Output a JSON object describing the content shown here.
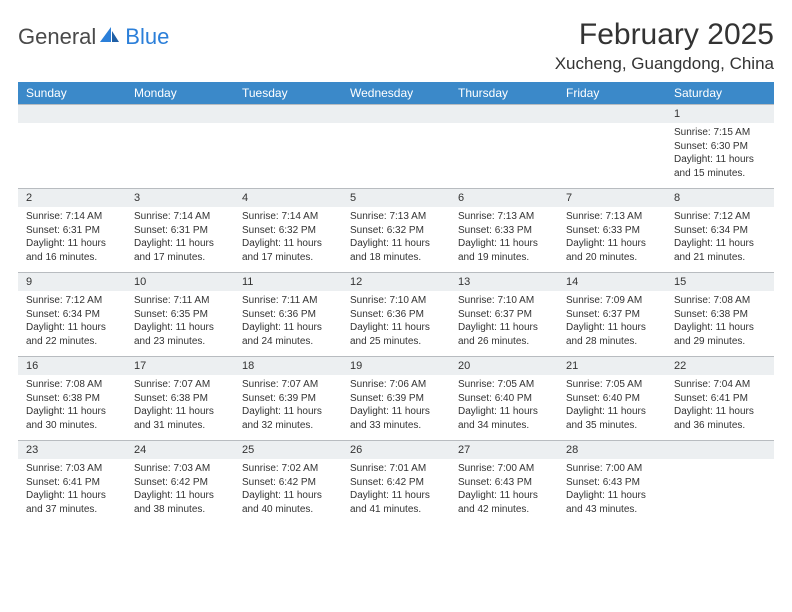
{
  "brand": {
    "part1": "General",
    "part2": "Blue"
  },
  "title": "February 2025",
  "location": "Xucheng, Guangdong, China",
  "styling": {
    "header_bg": "#3b89c9",
    "header_text": "#ffffff",
    "date_strip_bg": "#eceff1",
    "date_strip_border": "#b8bcc0",
    "body_text": "#333333",
    "logo_gray": "#4a4a4a",
    "logo_blue": "#2b7fd9",
    "month_fontsize": 30,
    "location_fontsize": 17,
    "dayhead_fontsize": 12,
    "date_fontsize": 11,
    "content_fontsize": 10
  },
  "day_names": [
    "Sunday",
    "Monday",
    "Tuesday",
    "Wednesday",
    "Thursday",
    "Friday",
    "Saturday"
  ],
  "weeks": [
    [
      {
        "date": "",
        "lines": [
          "",
          "",
          "",
          ""
        ]
      },
      {
        "date": "",
        "lines": [
          "",
          "",
          "",
          ""
        ]
      },
      {
        "date": "",
        "lines": [
          "",
          "",
          "",
          ""
        ]
      },
      {
        "date": "",
        "lines": [
          "",
          "",
          "",
          ""
        ]
      },
      {
        "date": "",
        "lines": [
          "",
          "",
          "",
          ""
        ]
      },
      {
        "date": "",
        "lines": [
          "",
          "",
          "",
          ""
        ]
      },
      {
        "date": "1",
        "lines": [
          "Sunrise: 7:15 AM",
          "Sunset: 6:30 PM",
          "Daylight: 11 hours and 15 minutes."
        ]
      }
    ],
    [
      {
        "date": "2",
        "lines": [
          "Sunrise: 7:14 AM",
          "Sunset: 6:31 PM",
          "Daylight: 11 hours and 16 minutes."
        ]
      },
      {
        "date": "3",
        "lines": [
          "Sunrise: 7:14 AM",
          "Sunset: 6:31 PM",
          "Daylight: 11 hours and 17 minutes."
        ]
      },
      {
        "date": "4",
        "lines": [
          "Sunrise: 7:14 AM",
          "Sunset: 6:32 PM",
          "Daylight: 11 hours and 17 minutes."
        ]
      },
      {
        "date": "5",
        "lines": [
          "Sunrise: 7:13 AM",
          "Sunset: 6:32 PM",
          "Daylight: 11 hours and 18 minutes."
        ]
      },
      {
        "date": "6",
        "lines": [
          "Sunrise: 7:13 AM",
          "Sunset: 6:33 PM",
          "Daylight: 11 hours and 19 minutes."
        ]
      },
      {
        "date": "7",
        "lines": [
          "Sunrise: 7:13 AM",
          "Sunset: 6:33 PM",
          "Daylight: 11 hours and 20 minutes."
        ]
      },
      {
        "date": "8",
        "lines": [
          "Sunrise: 7:12 AM",
          "Sunset: 6:34 PM",
          "Daylight: 11 hours and 21 minutes."
        ]
      }
    ],
    [
      {
        "date": "9",
        "lines": [
          "Sunrise: 7:12 AM",
          "Sunset: 6:34 PM",
          "Daylight: 11 hours and 22 minutes."
        ]
      },
      {
        "date": "10",
        "lines": [
          "Sunrise: 7:11 AM",
          "Sunset: 6:35 PM",
          "Daylight: 11 hours and 23 minutes."
        ]
      },
      {
        "date": "11",
        "lines": [
          "Sunrise: 7:11 AM",
          "Sunset: 6:36 PM",
          "Daylight: 11 hours and 24 minutes."
        ]
      },
      {
        "date": "12",
        "lines": [
          "Sunrise: 7:10 AM",
          "Sunset: 6:36 PM",
          "Daylight: 11 hours and 25 minutes."
        ]
      },
      {
        "date": "13",
        "lines": [
          "Sunrise: 7:10 AM",
          "Sunset: 6:37 PM",
          "Daylight: 11 hours and 26 minutes."
        ]
      },
      {
        "date": "14",
        "lines": [
          "Sunrise: 7:09 AM",
          "Sunset: 6:37 PM",
          "Daylight: 11 hours and 28 minutes."
        ]
      },
      {
        "date": "15",
        "lines": [
          "Sunrise: 7:08 AM",
          "Sunset: 6:38 PM",
          "Daylight: 11 hours and 29 minutes."
        ]
      }
    ],
    [
      {
        "date": "16",
        "lines": [
          "Sunrise: 7:08 AM",
          "Sunset: 6:38 PM",
          "Daylight: 11 hours and 30 minutes."
        ]
      },
      {
        "date": "17",
        "lines": [
          "Sunrise: 7:07 AM",
          "Sunset: 6:38 PM",
          "Daylight: 11 hours and 31 minutes."
        ]
      },
      {
        "date": "18",
        "lines": [
          "Sunrise: 7:07 AM",
          "Sunset: 6:39 PM",
          "Daylight: 11 hours and 32 minutes."
        ]
      },
      {
        "date": "19",
        "lines": [
          "Sunrise: 7:06 AM",
          "Sunset: 6:39 PM",
          "Daylight: 11 hours and 33 minutes."
        ]
      },
      {
        "date": "20",
        "lines": [
          "Sunrise: 7:05 AM",
          "Sunset: 6:40 PM",
          "Daylight: 11 hours and 34 minutes."
        ]
      },
      {
        "date": "21",
        "lines": [
          "Sunrise: 7:05 AM",
          "Sunset: 6:40 PM",
          "Daylight: 11 hours and 35 minutes."
        ]
      },
      {
        "date": "22",
        "lines": [
          "Sunrise: 7:04 AM",
          "Sunset: 6:41 PM",
          "Daylight: 11 hours and 36 minutes."
        ]
      }
    ],
    [
      {
        "date": "23",
        "lines": [
          "Sunrise: 7:03 AM",
          "Sunset: 6:41 PM",
          "Daylight: 11 hours and 37 minutes."
        ]
      },
      {
        "date": "24",
        "lines": [
          "Sunrise: 7:03 AM",
          "Sunset: 6:42 PM",
          "Daylight: 11 hours and 38 minutes."
        ]
      },
      {
        "date": "25",
        "lines": [
          "Sunrise: 7:02 AM",
          "Sunset: 6:42 PM",
          "Daylight: 11 hours and 40 minutes."
        ]
      },
      {
        "date": "26",
        "lines": [
          "Sunrise: 7:01 AM",
          "Sunset: 6:42 PM",
          "Daylight: 11 hours and 41 minutes."
        ]
      },
      {
        "date": "27",
        "lines": [
          "Sunrise: 7:00 AM",
          "Sunset: 6:43 PM",
          "Daylight: 11 hours and 42 minutes."
        ]
      },
      {
        "date": "28",
        "lines": [
          "Sunrise: 7:00 AM",
          "Sunset: 6:43 PM",
          "Daylight: 11 hours and 43 minutes."
        ]
      },
      {
        "date": "",
        "lines": [
          "",
          "",
          "",
          ""
        ]
      }
    ]
  ]
}
